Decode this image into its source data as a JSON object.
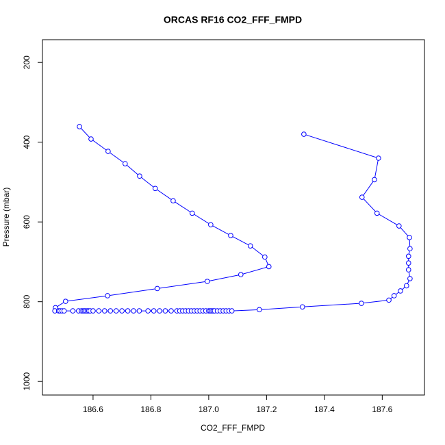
{
  "chart_data": {
    "type": "line",
    "title": "ORCAS RF16 CO2_FFF_FMPD",
    "x_label": "CO2_FFF_FMPD",
    "y_label": "Pressure (mbar)",
    "xlim": [
      186.425,
      187.746
    ],
    "ylim": [
      1034,
      143
    ],
    "xticks": [
      186.6,
      186.8,
      {
        "value": 187,
        "label": "187.0"
      },
      187.2,
      187.4,
      187.6
    ],
    "yticks": [
      200,
      400,
      600,
      800,
      1000
    ],
    "color": "#0000ff",
    "x": [
      186.553,
      186.593,
      186.652,
      186.711,
      186.761,
      186.815,
      186.877,
      186.943,
      187.007,
      187.076,
      187.144,
      187.194,
      187.208,
      187.111,
      186.995,
      186.822,
      186.65,
      186.505,
      186.47,
      186.468,
      186.481,
      186.486,
      186.493,
      186.5,
      186.53,
      186.55,
      186.56,
      186.565,
      186.57,
      186.575,
      186.58,
      186.585,
      186.59,
      186.6,
      186.62,
      186.64,
      186.66,
      186.68,
      186.7,
      186.72,
      186.74,
      186.76,
      186.79,
      186.81,
      186.83,
      186.85,
      186.87,
      186.89,
      186.9,
      186.91,
      186.92,
      186.93,
      186.94,
      186.95,
      186.96,
      186.97,
      186.98,
      186.99,
      187.0,
      187.005,
      187.01,
      187.015,
      187.02,
      187.03,
      187.04,
      187.05,
      187.06,
      187.07,
      187.08,
      187.175,
      187.324,
      187.528,
      187.623,
      187.641,
      187.663,
      187.684,
      187.696,
      187.691,
      187.691,
      187.691,
      187.696,
      187.694,
      187.658,
      187.582,
      187.53,
      187.573,
      187.587,
      187.329
    ],
    "values": [
      361,
      392,
      423,
      454,
      485,
      516,
      547,
      578,
      607,
      634,
      660,
      688,
      712,
      732,
      749,
      767,
      785,
      799,
      815,
      823,
      823,
      823,
      823,
      823,
      823,
      823,
      823,
      823,
      823,
      823,
      823,
      823,
      823,
      823,
      823,
      823,
      823,
      823,
      823,
      823,
      823,
      823,
      823,
      823,
      823,
      823,
      823,
      823,
      823,
      823,
      823,
      823,
      823,
      823,
      823,
      823,
      823,
      823,
      823,
      823,
      823,
      823,
      823,
      823,
      823,
      823,
      823,
      823,
      823,
      820,
      813,
      804,
      796,
      785,
      773,
      760,
      742,
      720,
      703,
      686,
      667,
      639,
      610,
      578,
      538,
      494,
      440,
      380
    ]
  }
}
